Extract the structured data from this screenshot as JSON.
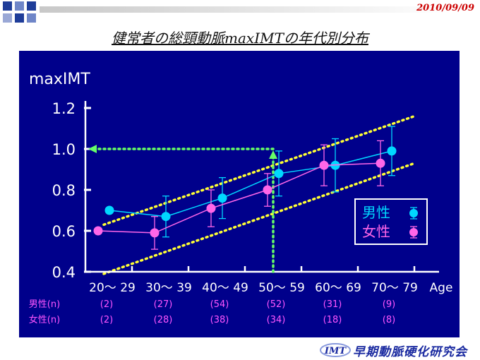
{
  "header": {
    "date": "2010/09/09",
    "title": "健常者の総頸動脈maxIMTの年代別分布"
  },
  "footer": {
    "logo_text": "IMT",
    "org": "早期動脈硬化研究会"
  },
  "colors": {
    "background": "#00008b",
    "male": "#00d8ff",
    "female": "#ff66e8",
    "trend": "#ffff33",
    "guide": "#66ff66",
    "count_label": "#ff55ff"
  },
  "chart_data": {
    "type": "line",
    "ylabel": "maxIMT",
    "xlabel": "Age",
    "categories": [
      "20～ 29",
      "30～ 39",
      "40～ 49",
      "50～ 59",
      "60～ 69",
      "70～ 79"
    ],
    "ylim": [
      0.4,
      1.25
    ],
    "yticks": [
      "0.4",
      "0.6",
      "0.8",
      "1.0",
      "1.2"
    ],
    "series": [
      {
        "name": "男性",
        "key": "male",
        "values": [
          0.7,
          0.67,
          0.76,
          0.88,
          0.92,
          0.99
        ],
        "err": [
          null,
          0.1,
          0.1,
          0.11,
          0.13,
          0.12
        ]
      },
      {
        "name": "女性",
        "key": "female",
        "values": [
          0.6,
          0.59,
          0.71,
          0.8,
          0.92,
          0.93
        ],
        "err": [
          null,
          0.08,
          0.09,
          0.08,
          0.1,
          0.11
        ]
      }
    ],
    "trend_bands": [
      {
        "from": [
          0.5,
          0.63
        ],
        "to": [
          6.0,
          1.16
        ]
      },
      {
        "from": [
          0.5,
          0.39
        ],
        "to": [
          6.0,
          0.93
        ]
      }
    ],
    "guide": {
      "x": 3.5,
      "y": 1.0
    },
    "counts": [
      {
        "label": "男性(n)",
        "key": "male",
        "values": [
          "(2)",
          "(27)",
          "(54)",
          "(52)",
          "(31)",
          "(9)"
        ]
      },
      {
        "label": "女性(n)",
        "key": "female",
        "values": [
          "(2)",
          "(28)",
          "(38)",
          "(34)",
          "(18)",
          "(8)"
        ]
      }
    ],
    "legend": {
      "position": "right",
      "items": [
        "男性",
        "女性"
      ]
    }
  }
}
